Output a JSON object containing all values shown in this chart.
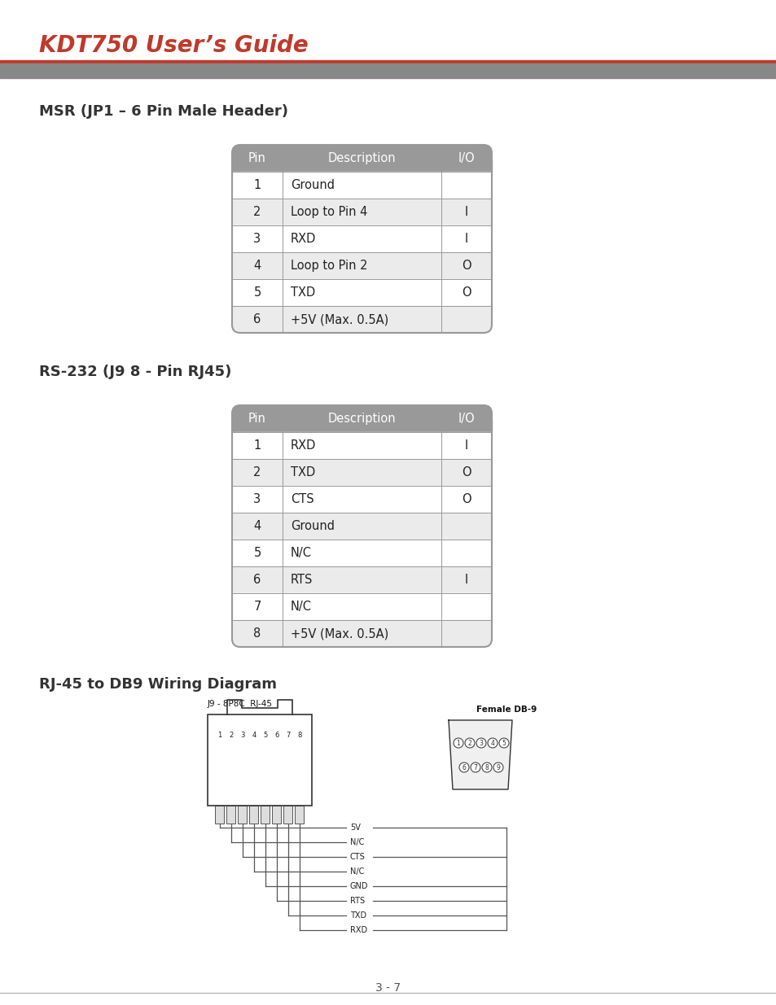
{
  "title": "KDT750 User’s Guide",
  "title_color": "#c0392b",
  "section1_title": "MSR (JP1 – 6 Pin Male Header)",
  "section2_title": "RS-232 (J9 8 - Pin RJ45)",
  "section3_title": "RJ-45 to DB9 Wiring Diagram",
  "table1_header": [
    "Pin",
    "Description",
    "I/O"
  ],
  "table1_rows": [
    [
      "1",
      "Ground",
      ""
    ],
    [
      "2",
      "Loop to Pin 4",
      "I"
    ],
    [
      "3",
      "RXD",
      "I"
    ],
    [
      "4",
      "Loop to Pin 2",
      "O"
    ],
    [
      "5",
      "TXD",
      "O"
    ],
    [
      "6",
      "+5V (Max. 0.5A)",
      ""
    ]
  ],
  "table2_header": [
    "Pin",
    "Description",
    "I/O"
  ],
  "table2_rows": [
    [
      "1",
      "RXD",
      "I"
    ],
    [
      "2",
      "TXD",
      "O"
    ],
    [
      "3",
      "CTS",
      "O"
    ],
    [
      "4",
      "Ground",
      ""
    ],
    [
      "5",
      "N/C",
      ""
    ],
    [
      "6",
      "RTS",
      "I"
    ],
    [
      "7",
      "N/C",
      ""
    ],
    [
      "8",
      "+5V (Max. 0.5A)",
      ""
    ]
  ],
  "header_bg": "#999999",
  "header_text": "#ffffff",
  "row_bg_light": "#ebebeb",
  "row_bg_white": "#ffffff",
  "table_border": "#999999",
  "page_number": "3 - 7",
  "background_color": "#ffffff",
  "wiring_labels": [
    "5V",
    "N/C",
    "CTS",
    "N/C",
    "GND",
    "RTS",
    "TXD",
    "RXD"
  ],
  "rj45_label": "J9 - 8P8C  RJ-45",
  "db9_label": "Female DB-9",
  "rule_color_red": "#c0392b",
  "rule_color_gray": "#888888",
  "section_title_color": "#333333",
  "text_color": "#222222",
  "wire_color": "#555555"
}
